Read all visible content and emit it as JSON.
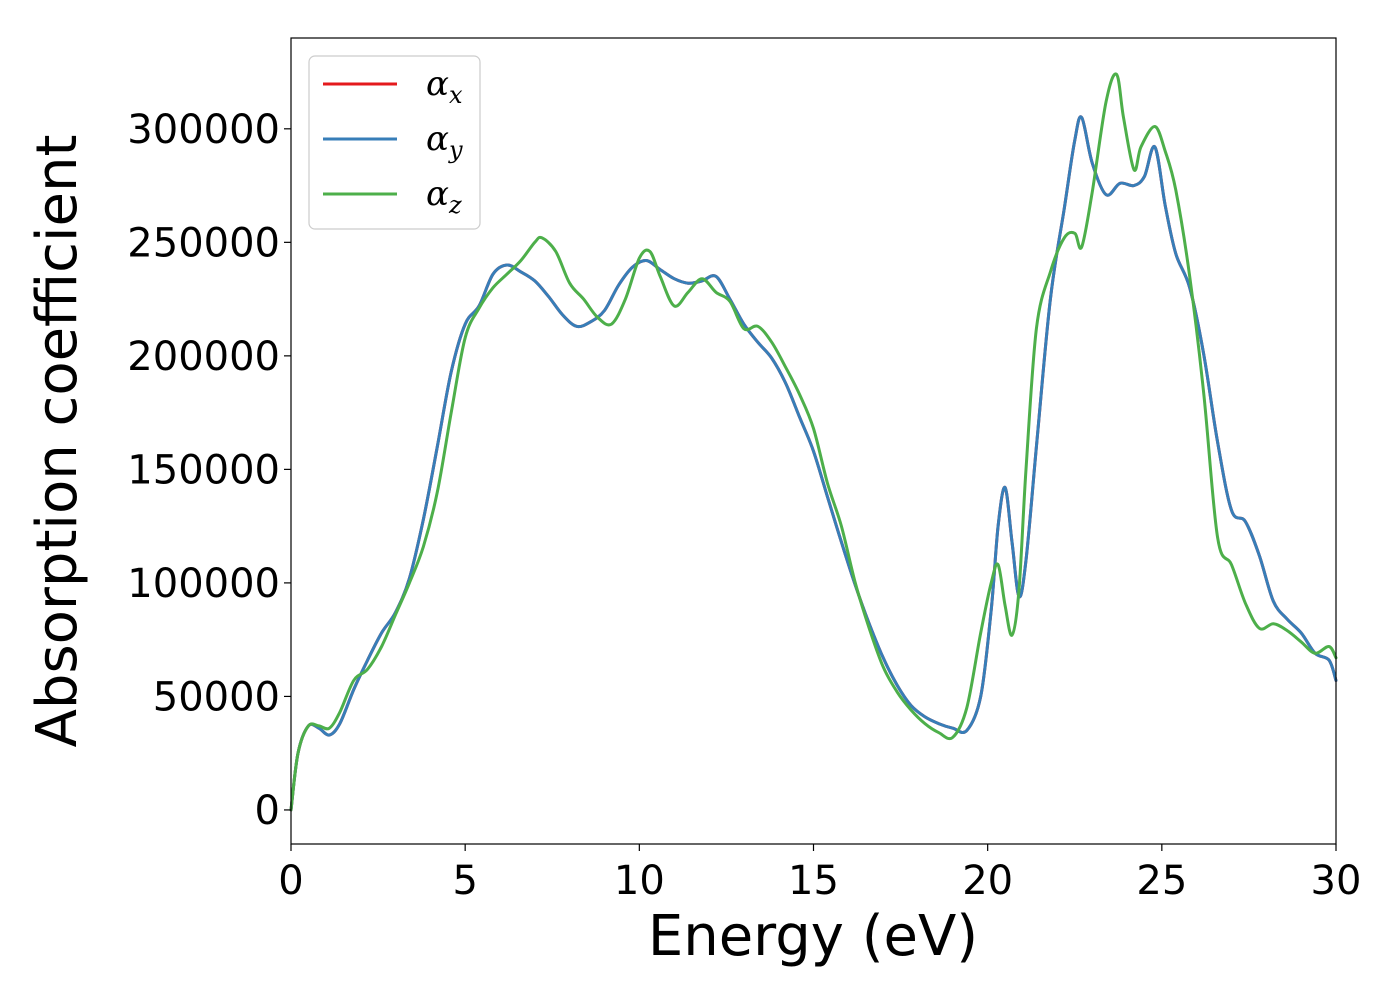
{
  "chart_data": {
    "type": "line",
    "title": "",
    "xlabel": "Energy (eV)",
    "ylabel": "Absorption coefficient",
    "xlim": [
      0,
      30
    ],
    "ylim": [
      -15000,
      340000
    ],
    "xticks": [
      0,
      5,
      10,
      15,
      20,
      25,
      30
    ],
    "xtick_labels": [
      "0",
      "5",
      "10",
      "15",
      "20",
      "25",
      "30"
    ],
    "yticks": [
      0,
      50000,
      100000,
      150000,
      200000,
      250000,
      300000
    ],
    "ytick_labels": [
      "0",
      "50000",
      "100000",
      "150000",
      "200000",
      "250000",
      "300000"
    ],
    "grid": false,
    "legend_position": "top-left",
    "series": [
      {
        "name": "α",
        "subscript": "x",
        "color": "#e41a1c",
        "x": [
          0,
          0.2,
          0.5,
          0.8,
          1.1,
          1.4,
          1.8,
          2.2,
          2.6,
          3.0,
          3.4,
          3.8,
          4.2,
          4.6,
          5.0,
          5.4,
          5.8,
          6.2,
          6.6,
          7.0,
          7.4,
          7.8,
          8.2,
          8.6,
          9.0,
          9.4,
          9.8,
          10.2,
          10.6,
          11.0,
          11.4,
          11.8,
          12.2,
          12.6,
          13.0,
          13.4,
          13.8,
          14.2,
          14.6,
          15.0,
          15.4,
          15.8,
          16.2,
          16.6,
          17.0,
          17.4,
          17.8,
          18.2,
          18.6,
          19.0,
          19.4,
          19.8,
          20.1,
          20.3,
          20.5,
          20.7,
          20.9,
          21.1,
          21.4,
          21.8,
          22.2,
          22.5,
          22.7,
          23.0,
          23.4,
          23.8,
          24.2,
          24.5,
          24.8,
          25.1,
          25.4,
          25.8,
          26.2,
          26.6,
          27.0,
          27.4,
          27.8,
          28.2,
          28.6,
          29.0,
          29.4,
          29.8,
          30.0
        ],
        "y": [
          0,
          25000,
          37000,
          36000,
          33000,
          38000,
          53000,
          66000,
          78000,
          87000,
          102000,
          128000,
          160000,
          193000,
          214000,
          222000,
          236000,
          240000,
          237000,
          233000,
          226000,
          218000,
          213000,
          215000,
          220000,
          231000,
          239000,
          242000,
          238000,
          234000,
          232000,
          233000,
          235000,
          225000,
          214000,
          206000,
          199000,
          188000,
          173000,
          158000,
          138000,
          118000,
          99000,
          82000,
          67000,
          55000,
          46000,
          41000,
          38000,
          36000,
          35000,
          50000,
          88000,
          125000,
          142000,
          118000,
          94000,
          110000,
          160000,
          225000,
          265000,
          295000,
          305000,
          285000,
          271000,
          276000,
          275000,
          279000,
          292000,
          266000,
          245000,
          230000,
          201000,
          162000,
          132000,
          127000,
          112000,
          92000,
          84000,
          78000,
          69000,
          66000,
          57000
        ]
      },
      {
        "name": "α",
        "subscript": "y",
        "color": "#377eb8",
        "x": [
          0,
          0.2,
          0.5,
          0.8,
          1.1,
          1.4,
          1.8,
          2.2,
          2.6,
          3.0,
          3.4,
          3.8,
          4.2,
          4.6,
          5.0,
          5.4,
          5.8,
          6.2,
          6.6,
          7.0,
          7.4,
          7.8,
          8.2,
          8.6,
          9.0,
          9.4,
          9.8,
          10.2,
          10.6,
          11.0,
          11.4,
          11.8,
          12.2,
          12.6,
          13.0,
          13.4,
          13.8,
          14.2,
          14.6,
          15.0,
          15.4,
          15.8,
          16.2,
          16.6,
          17.0,
          17.4,
          17.8,
          18.2,
          18.6,
          19.0,
          19.4,
          19.8,
          20.1,
          20.3,
          20.5,
          20.7,
          20.9,
          21.1,
          21.4,
          21.8,
          22.2,
          22.5,
          22.7,
          23.0,
          23.4,
          23.8,
          24.2,
          24.5,
          24.8,
          25.1,
          25.4,
          25.8,
          26.2,
          26.6,
          27.0,
          27.4,
          27.8,
          28.2,
          28.6,
          29.0,
          29.4,
          29.8,
          30.0
        ],
        "y": [
          0,
          25000,
          37000,
          36000,
          33000,
          38000,
          53000,
          66000,
          78000,
          87000,
          102000,
          128000,
          160000,
          193000,
          214000,
          222000,
          236000,
          240000,
          237000,
          233000,
          226000,
          218000,
          213000,
          215000,
          220000,
          231000,
          239000,
          242000,
          238000,
          234000,
          232000,
          233000,
          235000,
          225000,
          214000,
          206000,
          199000,
          188000,
          173000,
          158000,
          138000,
          118000,
          99000,
          82000,
          67000,
          55000,
          46000,
          41000,
          38000,
          36000,
          35000,
          50000,
          88000,
          125000,
          142000,
          118000,
          94000,
          110000,
          160000,
          225000,
          265000,
          295000,
          305000,
          285000,
          271000,
          276000,
          275000,
          279000,
          292000,
          266000,
          245000,
          230000,
          201000,
          162000,
          132000,
          127000,
          112000,
          92000,
          84000,
          78000,
          69000,
          66000,
          57000
        ]
      },
      {
        "name": "α",
        "subscript": "z",
        "color": "#4daf4a",
        "x": [
          0,
          0.2,
          0.5,
          0.8,
          1.1,
          1.4,
          1.8,
          2.2,
          2.6,
          3.0,
          3.4,
          3.8,
          4.2,
          4.6,
          5.0,
          5.4,
          5.8,
          6.2,
          6.6,
          7.0,
          7.2,
          7.6,
          8.0,
          8.4,
          8.8,
          9.2,
          9.6,
          10.0,
          10.3,
          10.6,
          11.0,
          11.4,
          11.8,
          12.2,
          12.6,
          13.0,
          13.4,
          13.8,
          14.2,
          14.6,
          15.0,
          15.4,
          15.8,
          16.2,
          16.6,
          17.0,
          17.4,
          17.8,
          18.2,
          18.6,
          19.0,
          19.4,
          19.8,
          20.1,
          20.3,
          20.5,
          20.7,
          20.9,
          21.1,
          21.4,
          21.8,
          22.2,
          22.5,
          22.7,
          23.0,
          23.4,
          23.7,
          23.9,
          24.2,
          24.4,
          24.8,
          25.1,
          25.4,
          25.8,
          26.2,
          26.6,
          27.0,
          27.4,
          27.8,
          28.2,
          28.6,
          29.0,
          29.4,
          29.8,
          30.0
        ],
        "y": [
          0,
          25000,
          37000,
          37000,
          36000,
          43000,
          57000,
          62000,
          72000,
          86000,
          100000,
          116000,
          140000,
          175000,
          208000,
          221000,
          230000,
          236000,
          242000,
          250000,
          252000,
          246000,
          232000,
          225000,
          217000,
          214000,
          225000,
          243000,
          246000,
          235000,
          222000,
          228000,
          234000,
          228000,
          224000,
          212000,
          213000,
          206000,
          195000,
          183000,
          168000,
          144000,
          125000,
          100000,
          80000,
          63000,
          52000,
          44000,
          38000,
          34000,
          32000,
          45000,
          78000,
          100000,
          108000,
          90000,
          77000,
          97000,
          150000,
          212000,
          237000,
          252000,
          254000,
          248000,
          272000,
          312000,
          324000,
          305000,
          282000,
          292000,
          301000,
          290000,
          273000,
          235000,
          184000,
          120000,
          108000,
          91000,
          80000,
          82000,
          79000,
          74000,
          69000,
          72000,
          67000
        ]
      }
    ]
  }
}
